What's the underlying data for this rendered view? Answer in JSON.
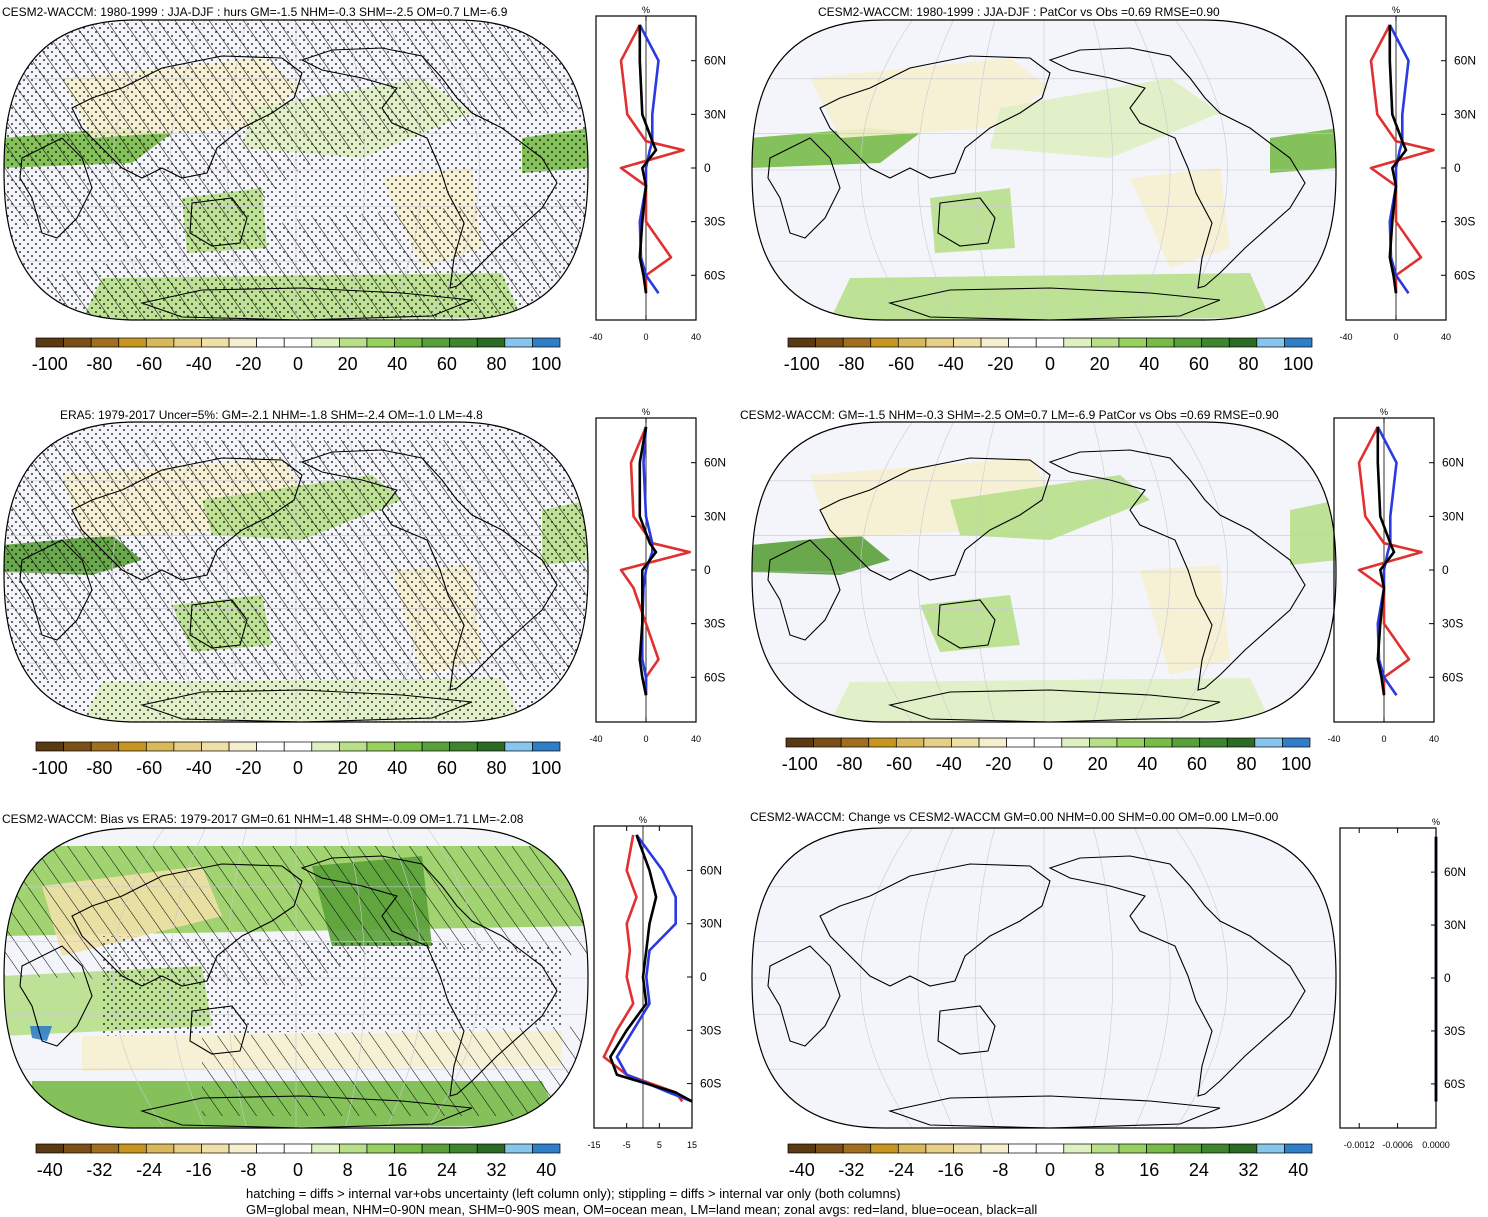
{
  "panels": [
    {
      "title": "CESM2-WACCM: 1980-1999 : JJA-DJF : hurs GM=-1.5 NHM=-0.3 SHM=-2.5 OM=0.7 LM=-6.9",
      "zonal_xticks": [
        "-40",
        "0",
        "40"
      ]
    },
    {
      "title": "CESM2-WACCM: 1980-1999 : JJA-DJF : PatCor vs Obs =0.69 RMSE=0.90",
      "zonal_xticks": [
        "-40",
        "0",
        "40"
      ]
    },
    {
      "title": "ERA5: 1979-2017 Uncer=5%: GM=-2.1 NHM=-1.8 SHM=-2.4 OM=-1.0 LM=-4.8",
      "zonal_xticks": [
        "-40",
        "0",
        "40"
      ]
    },
    {
      "title": "CESM2-WACCM: GM=-1.5 NHM=-0.3 SHM=-2.5 OM=0.7 LM=-6.9 PatCor vs Obs =0.69 RMSE=0.90",
      "zonal_xticks": [
        "-40",
        "0",
        "40"
      ]
    },
    {
      "title": "CESM2-WACCM: Bias vs ERA5: 1979-2017 GM=0.61 NHM=1.48 SHM=-0.09 OM=1.71 LM=-2.08",
      "zonal_xticks": [
        "-15",
        "-5",
        "5",
        "15"
      ]
    },
    {
      "title": "CESM2-WACCM: Change vs CESM2-WACCM GM=0.00 NHM=0.00 SHM=0.00 OM=0.00 LM=0.00",
      "zonal_xticks": [
        "-0.0012",
        "-0.0006",
        "0.0000"
      ]
    }
  ],
  "zonal_unit": "%",
  "lat_ticks": [
    "60N",
    "30N",
    "0",
    "30S",
    "60S"
  ],
  "colorbar_a": {
    "labels": [
      "-100",
      "-80",
      "-60",
      "-40",
      "-20",
      "0",
      "20",
      "40",
      "60",
      "80",
      "100"
    ]
  },
  "colorbar_b": {
    "labels": [
      "-40",
      "-32",
      "-24",
      "-16",
      "-8",
      "0",
      "8",
      "16",
      "24",
      "32",
      "40"
    ]
  },
  "colors": {
    "palette": [
      "#5a3a12",
      "#7a5018",
      "#a06e1e",
      "#c8961e",
      "#d8b85a",
      "#e6cf86",
      "#efe0a8",
      "#f6efcf",
      "#ffffff",
      "#ffffff",
      "#dff0c2",
      "#b8e08a",
      "#98d060",
      "#78bb48",
      "#5aa03a",
      "#3f8530",
      "#2c6a26",
      "#87c6ec",
      "#2f7fc8"
    ],
    "land": "#e03030",
    "ocean": "#2a3ae0",
    "all": "#000000",
    "map_bg": "#f4f5fb"
  },
  "footer": {
    "line1": "hatching = diffs > internal var+obs uncertainty (left column only); stippling = diffs > internal var only (both columns)",
    "line2": "GM=global mean, NHM=0-90N mean, SHM=0-90S mean, OM=ocean mean, LM=land mean; zonal avgs: red=land, blue=ocean, black=all"
  },
  "chart_data": [
    {
      "type": "heatmap",
      "title": "CESM2-WACCM: 1980-1999 : JJA-DJF : hurs GM=-1.5 NHM=-0.3 SHM=-2.5 OM=0.7 LM=-6.9",
      "colorbar_range": [
        -100,
        100
      ],
      "projection": "Robinson (Pacific-centered)",
      "hatching": true,
      "stippling": true,
      "zonal_xlim": [
        -40,
        40
      ],
      "zonal_lats": [
        80,
        60,
        30,
        15,
        10,
        0,
        -10,
        -30,
        -50,
        -60,
        -70
      ],
      "zonal_land": [
        -5,
        -20,
        -15,
        0,
        30,
        -20,
        0,
        0,
        20,
        0,
        0
      ],
      "zonal_ocean": [
        -5,
        10,
        5,
        5,
        3,
        0,
        0,
        -5,
        -4,
        0,
        10
      ],
      "zonal_all": [
        -5,
        -5,
        -3,
        5,
        8,
        -3,
        0,
        -3,
        -5,
        -2,
        0
      ]
    },
    {
      "type": "heatmap",
      "title": "CESM2-WACCM: 1980-1999 : JJA-DJF : PatCor vs Obs =0.69 RMSE=0.90",
      "colorbar_range": [
        -100,
        100
      ],
      "projection": "Robinson (Pacific-centered)",
      "hatching": false,
      "stippling": false,
      "zonal_xlim": [
        -40,
        40
      ],
      "zonal_lats": [
        80,
        60,
        30,
        15,
        10,
        0,
        -10,
        -30,
        -50,
        -60,
        -70
      ],
      "zonal_land": [
        -5,
        -20,
        -15,
        0,
        30,
        -20,
        0,
        0,
        20,
        0,
        0
      ],
      "zonal_ocean": [
        -5,
        10,
        5,
        5,
        3,
        0,
        0,
        -5,
        -4,
        0,
        10
      ],
      "zonal_all": [
        -5,
        -5,
        -3,
        5,
        8,
        -3,
        0,
        -3,
        -5,
        -2,
        0
      ]
    },
    {
      "type": "heatmap",
      "title": "ERA5: 1979-2017 Uncer=5%: GM=-2.1 NHM=-1.8 SHM=-2.4 OM=-1.0 LM=-4.8",
      "colorbar_range": [
        -100,
        100
      ],
      "projection": "Robinson (Pacific-centered)",
      "hatching": true,
      "stippling": true,
      "zonal_xlim": [
        -40,
        40
      ],
      "zonal_lats": [
        80,
        60,
        30,
        15,
        10,
        0,
        -10,
        -30,
        -50,
        -60,
        -70
      ],
      "zonal_land": [
        0,
        -12,
        -10,
        5,
        35,
        -20,
        -10,
        0,
        10,
        0,
        0
      ],
      "zonal_ocean": [
        0,
        -2,
        0,
        5,
        5,
        0,
        -2,
        -3,
        -3,
        0,
        0
      ],
      "zonal_all": [
        0,
        -5,
        -5,
        3,
        8,
        -3,
        -3,
        -3,
        -5,
        -3,
        0
      ]
    },
    {
      "type": "heatmap",
      "title": "CESM2-WACCM: GM=-1.5 NHM=-0.3 SHM=-2.5 OM=0.7 LM=-6.9 PatCor vs Obs =0.69 RMSE=0.90",
      "colorbar_range": [
        -100,
        100
      ],
      "projection": "Robinson (Pacific-centered)",
      "hatching": false,
      "stippling": false,
      "zonal_xlim": [
        -40,
        40
      ],
      "zonal_lats": [
        80,
        60,
        30,
        15,
        10,
        0,
        -10,
        -30,
        -50,
        -60,
        -70
      ],
      "zonal_land": [
        -5,
        -20,
        -15,
        0,
        30,
        -20,
        0,
        0,
        20,
        0,
        0
      ],
      "zonal_ocean": [
        -5,
        10,
        5,
        5,
        3,
        0,
        0,
        -5,
        -4,
        0,
        10
      ],
      "zonal_all": [
        -5,
        -5,
        -3,
        5,
        8,
        -3,
        0,
        -3,
        -5,
        -2,
        0
      ]
    },
    {
      "type": "heatmap",
      "title": "CESM2-WACCM: Bias vs ERA5: 1979-2017 GM=0.61 NHM=1.48 SHM=-0.09 OM=1.71 LM=-2.08",
      "colorbar_range": [
        -40,
        40
      ],
      "projection": "Robinson (Pacific-centered)",
      "hatching": true,
      "stippling": true,
      "zonal_xlim": [
        -15,
        15
      ],
      "zonal_lats": [
        80,
        60,
        45,
        30,
        15,
        0,
        -15,
        -30,
        -45,
        -55,
        -65,
        -70
      ],
      "zonal_land": [
        -3,
        -5,
        -2,
        -5,
        -4,
        -5,
        -3,
        -8,
        -12,
        -5,
        10,
        12
      ],
      "zonal_ocean": [
        -2,
        6,
        10,
        10,
        2,
        1,
        2,
        -3,
        -8,
        -5,
        8,
        15
      ],
      "zonal_all": [
        -2,
        2,
        4,
        2,
        1,
        0,
        1,
        -5,
        -10,
        -8,
        10,
        15
      ]
    },
    {
      "type": "heatmap",
      "title": "CESM2-WACCM: Change vs CESM2-WACCM GM=0.00 NHM=0.00 SHM=0.00 OM=0.00 LM=0.00",
      "colorbar_range": [
        -40,
        40
      ],
      "projection": "Robinson (Pacific-centered)",
      "hatching": false,
      "stippling": false,
      "zonal_xlim": [
        -0.0015,
        0.0
      ],
      "zonal_lats": [
        80,
        60,
        30,
        0,
        -30,
        -60,
        -70
      ],
      "zonal_land": [
        0,
        0,
        0,
        0,
        0,
        0,
        0
      ],
      "zonal_ocean": [
        0,
        0,
        0,
        0,
        0,
        0,
        0
      ],
      "zonal_all": [
        0,
        0,
        0,
        0,
        0,
        0,
        0
      ]
    }
  ]
}
